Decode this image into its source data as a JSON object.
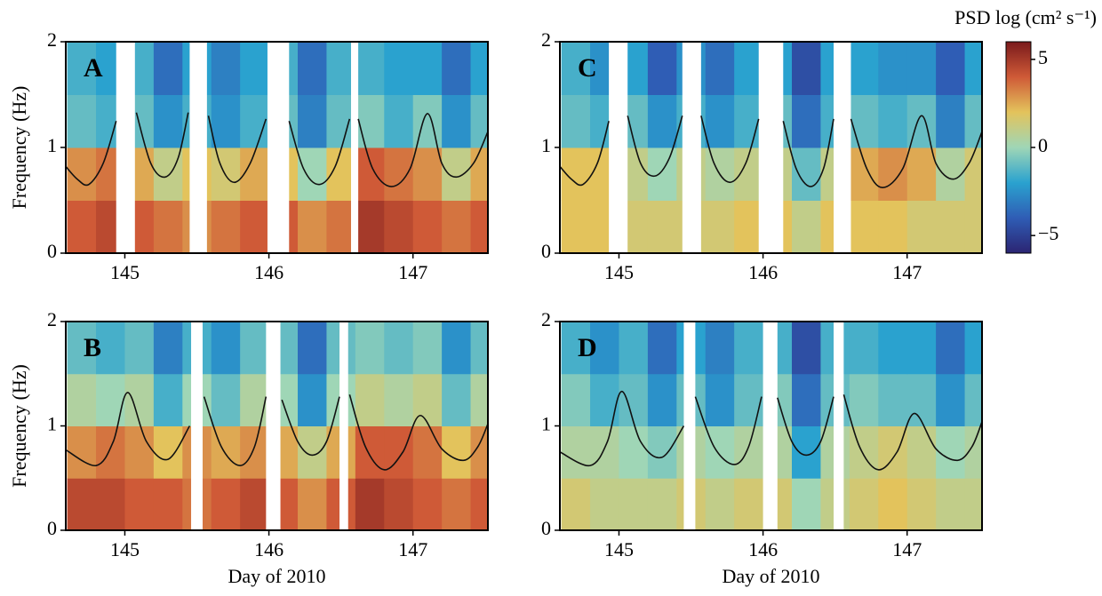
{
  "chart_data": [
    {
      "type": "heatmap",
      "label": "A",
      "ylabel": "Frequency (Hz)",
      "xlim": [
        144.59,
        147.52
      ],
      "xticks": [
        145,
        146,
        147
      ],
      "ylim": [
        0,
        2
      ],
      "yticks": [
        0,
        1,
        2
      ],
      "x_bins": [
        144.6,
        144.8,
        145.0,
        145.2,
        145.4,
        145.6,
        145.8,
        146.0,
        146.2,
        146.4,
        146.6,
        146.8,
        147.0,
        147.2,
        147.4,
        147.6
      ],
      "y_bins": [
        0,
        0.5,
        1,
        1.5,
        2
      ],
      "z": [
        [
          4,
          4.5,
          4,
          3.5,
          3,
          3.5,
          4,
          4,
          3,
          3.5,
          5,
          4.5,
          4,
          3.5,
          4
        ],
        [
          3,
          3.5,
          2.5,
          1,
          2,
          1.5,
          2.5,
          2,
          0,
          2,
          4,
          3.5,
          3,
          1,
          2.5
        ],
        [
          -1,
          -1.5,
          -1,
          -2.5,
          -1.5,
          -2.5,
          -1.5,
          -1,
          -3,
          -1,
          -0.5,
          -1.5,
          -0.5,
          -2.5,
          -1
        ],
        [
          -1.5,
          -2,
          -1.5,
          -3.5,
          -2,
          -3,
          -2,
          -1.5,
          -3.5,
          -1.5,
          -1.5,
          -2,
          -2,
          -3.5,
          -2
        ]
      ],
      "gaps": [
        [
          144.94,
          145.07
        ],
        [
          145.45,
          145.57
        ],
        [
          145.99,
          146.14
        ],
        [
          146.57,
          146.62
        ]
      ],
      "curve": {
        "x": [
          144.59,
          144.67,
          144.75,
          144.85,
          144.94,
          null,
          145.08,
          145.18,
          145.28,
          145.37,
          145.44,
          null,
          145.58,
          145.66,
          145.76,
          145.87,
          145.98,
          null,
          146.14,
          146.24,
          146.35,
          146.46,
          146.56,
          null,
          146.62,
          146.72,
          146.85,
          146.98,
          147.1,
          147.2,
          147.3,
          147.42,
          147.52
        ],
        "values": [
          0.82,
          0.7,
          0.65,
          0.85,
          1.25,
          null,
          1.33,
          0.85,
          0.72,
          0.9,
          1.33,
          null,
          1.3,
          0.85,
          0.67,
          0.85,
          1.27,
          null,
          1.25,
          0.8,
          0.65,
          0.82,
          1.27,
          null,
          1.27,
          0.8,
          0.63,
          0.8,
          1.32,
          0.85,
          0.72,
          0.85,
          1.15
        ]
      }
    },
    {
      "type": "heatmap",
      "label": "B",
      "ylabel": "Frequency (Hz)",
      "xlabel": "Day of 2010",
      "xlim": [
        144.59,
        147.52
      ],
      "xticks": [
        145,
        146,
        147
      ],
      "ylim": [
        0,
        2
      ],
      "yticks": [
        0,
        1,
        2
      ],
      "x_bins": [
        144.6,
        144.8,
        145.0,
        145.2,
        145.4,
        145.6,
        145.8,
        146.0,
        146.2,
        146.4,
        146.6,
        146.8,
        147.0,
        147.2,
        147.4,
        147.6
      ],
      "y_bins": [
        0,
        0.5,
        1,
        1.5,
        2
      ],
      "z": [
        [
          4.5,
          4.5,
          4,
          4,
          3.5,
          4,
          4.5,
          4,
          3,
          4,
          5,
          4.5,
          4,
          3.5,
          4
        ],
        [
          3,
          3.5,
          3,
          2,
          3,
          2.5,
          3,
          2.5,
          1,
          2.5,
          4,
          4,
          3.5,
          2,
          3
        ],
        [
          0.5,
          0,
          0.5,
          -1.5,
          0,
          -1,
          0.5,
          0,
          -2.5,
          0,
          1,
          0.5,
          1,
          -1,
          0.5
        ],
        [
          -1,
          -1.5,
          -1,
          -3,
          -1.5,
          -2.5,
          -1,
          -1,
          -3.5,
          -1,
          -0.5,
          -1,
          -0.5,
          -2.5,
          -1
        ]
      ],
      "gaps": [
        [
          145.46,
          145.54
        ],
        [
          145.98,
          146.08
        ],
        [
          146.49,
          146.55
        ]
      ],
      "curve": {
        "x": [
          144.59,
          144.8,
          144.92,
          145.02,
          145.15,
          145.3,
          145.45,
          null,
          145.55,
          145.67,
          145.8,
          145.9,
          145.98,
          null,
          146.09,
          146.2,
          146.3,
          146.4,
          146.49,
          null,
          146.56,
          146.67,
          146.8,
          146.93,
          147.05,
          147.2,
          147.35,
          147.45,
          147.52
        ],
        "values": [
          0.77,
          0.62,
          0.85,
          1.32,
          0.85,
          0.68,
          1.0,
          null,
          1.28,
          0.8,
          0.62,
          0.8,
          1.28,
          null,
          1.25,
          0.85,
          0.72,
          0.85,
          1.28,
          null,
          1.3,
          0.8,
          0.58,
          0.75,
          1.1,
          0.78,
          0.67,
          0.8,
          1.02
        ]
      }
    },
    {
      "type": "heatmap",
      "label": "C",
      "xlim": [
        144.59,
        147.52
      ],
      "xticks": [
        145,
        146,
        147
      ],
      "ylim": [
        0,
        2
      ],
      "yticks": [
        0,
        1,
        2
      ],
      "x_bins": [
        144.6,
        144.8,
        145.0,
        145.2,
        145.4,
        145.6,
        145.8,
        146.0,
        146.2,
        146.4,
        146.6,
        146.8,
        147.0,
        147.2,
        147.4,
        147.6
      ],
      "y_bins": [
        0,
        0.5,
        1,
        1.5,
        2
      ],
      "z": [
        [
          2,
          2,
          1.5,
          1.5,
          1.5,
          1.5,
          2,
          2,
          1,
          2,
          2,
          2,
          1.5,
          1.5,
          1.5
        ],
        [
          2,
          2,
          1,
          0,
          1,
          0.5,
          1,
          1,
          -1,
          1,
          2.5,
          3,
          2.5,
          0.5,
          1.5
        ],
        [
          -1,
          -1.5,
          -1,
          -2.5,
          -1.5,
          -2.5,
          -1.5,
          -1,
          -3.5,
          -1.5,
          -1,
          -1.5,
          -1,
          -3,
          -1
        ],
        [
          -1.5,
          -2.5,
          -2,
          -4,
          -2.5,
          -3.5,
          -2,
          -2,
          -4.5,
          -2,
          -2,
          -2.5,
          -2.5,
          -4,
          -2
        ]
      ],
      "gaps": [
        [
          144.93,
          145.06
        ],
        [
          145.44,
          145.57
        ],
        [
          145.97,
          146.14
        ],
        [
          146.49,
          146.61
        ]
      ],
      "curve": {
        "x": [
          144.59,
          144.67,
          144.75,
          144.85,
          144.93,
          null,
          145.06,
          145.15,
          145.25,
          145.35,
          145.44,
          null,
          145.57,
          145.66,
          145.77,
          145.88,
          145.97,
          null,
          146.14,
          146.23,
          146.33,
          146.42,
          146.49,
          null,
          146.61,
          146.72,
          146.83,
          146.97,
          147.1,
          147.2,
          147.32,
          147.43,
          147.52
        ],
        "values": [
          0.82,
          0.7,
          0.65,
          0.85,
          1.25,
          null,
          1.3,
          0.85,
          0.73,
          0.9,
          1.3,
          null,
          1.3,
          0.85,
          0.67,
          0.85,
          1.27,
          null,
          1.25,
          0.8,
          0.63,
          0.8,
          1.27,
          null,
          1.27,
          0.8,
          0.62,
          0.8,
          1.3,
          0.85,
          0.7,
          0.85,
          1.15
        ]
      }
    },
    {
      "type": "heatmap",
      "label": "D",
      "xlabel": "Day of 2010",
      "xlim": [
        144.59,
        147.52
      ],
      "xticks": [
        145,
        146,
        147
      ],
      "ylim": [
        0,
        2
      ],
      "yticks": [
        0,
        1,
        2
      ],
      "x_bins": [
        144.6,
        144.8,
        145.0,
        145.2,
        145.4,
        145.6,
        145.8,
        146.0,
        146.2,
        146.4,
        146.6,
        146.8,
        147.0,
        147.2,
        147.4,
        147.6
      ],
      "y_bins": [
        0,
        0.5,
        1,
        1.5,
        2
      ],
      "z": [
        [
          1.5,
          1,
          1,
          1,
          1.5,
          1,
          1.5,
          1.5,
          0,
          1,
          1.5,
          2,
          1.5,
          1,
          1
        ],
        [
          0.5,
          0.5,
          0,
          -0.5,
          0.5,
          0,
          0.5,
          0.5,
          -2,
          0.5,
          1,
          1.5,
          1,
          0,
          0.5
        ],
        [
          -0.5,
          -1.5,
          -1,
          -2.5,
          -1,
          -2.5,
          -1,
          -0.5,
          -3.5,
          -1,
          -0.5,
          -1,
          -1,
          -2.5,
          -1
        ],
        [
          -1.5,
          -2.5,
          -1.5,
          -3.5,
          -2,
          -3,
          -1.5,
          -1.5,
          -4.5,
          -1.5,
          -1.5,
          -2,
          -2,
          -3.5,
          -2
        ]
      ],
      "gaps": [
        [
          145.45,
          145.53
        ],
        [
          146.0,
          146.1
        ],
        [
          146.49,
          146.56
        ]
      ],
      "curve": {
        "x": [
          144.59,
          144.8,
          144.92,
          145.02,
          145.15,
          145.3,
          145.45,
          null,
          145.53,
          145.66,
          145.8,
          145.9,
          145.99,
          null,
          146.1,
          146.2,
          146.3,
          146.4,
          146.49,
          null,
          146.56,
          146.67,
          146.8,
          146.93,
          147.05,
          147.2,
          147.35,
          147.45,
          147.52
        ],
        "values": [
          0.75,
          0.62,
          0.85,
          1.33,
          0.85,
          0.7,
          1.0,
          null,
          1.28,
          0.8,
          0.63,
          0.8,
          1.28,
          null,
          1.27,
          0.85,
          0.72,
          0.85,
          1.28,
          null,
          1.3,
          0.8,
          0.58,
          0.75,
          1.12,
          0.78,
          0.67,
          0.8,
          1.04
        ]
      }
    }
  ],
  "colorbar": {
    "title": "PSD log (cm² s⁻¹)",
    "lim": [
      -6,
      6
    ],
    "ticks": [
      5,
      0,
      {
        "value": -5,
        "label": "−5"
      }
    ],
    "colors": [
      "#2b2472",
      "#2f5db5",
      "#2aa2cf",
      "#9fd6b6",
      "#e3c35c",
      "#cf5a37",
      "#7a1a1c"
    ]
  }
}
